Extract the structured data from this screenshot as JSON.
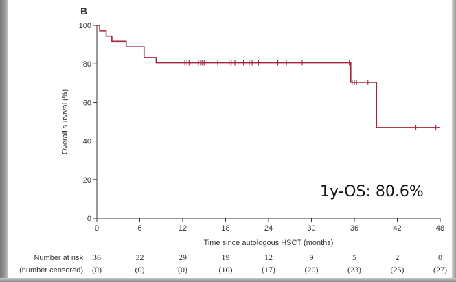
{
  "chart_data": {
    "type": "line",
    "panel_label": "B",
    "xlabel": "Time since autologous HSCT (months)",
    "ylabel": "Overall survival (%)",
    "xlim": [
      0,
      48
    ],
    "ylim": [
      0,
      100
    ],
    "x_ticks": [
      0,
      6,
      12,
      18,
      24,
      30,
      36,
      42,
      48
    ],
    "y_ticks": [
      0,
      20,
      40,
      60,
      80,
      100
    ],
    "grid": false,
    "line_color": "#a3233a",
    "series": [
      {
        "steps": [
          [
            0,
            100
          ],
          [
            0.4,
            97.2
          ],
          [
            1.3,
            94.4
          ],
          [
            2.1,
            91.7
          ],
          [
            4.1,
            88.9
          ],
          [
            6.6,
            83.3
          ],
          [
            8.3,
            80.6
          ],
          [
            35.5,
            70.5
          ],
          [
            39.1,
            47.0
          ],
          [
            48,
            47.0
          ]
        ],
        "censored": [
          [
            12.3,
            80.6
          ],
          [
            12.6,
            80.6
          ],
          [
            12.9,
            80.6
          ],
          [
            13.3,
            80.6
          ],
          [
            14.2,
            80.6
          ],
          [
            14.5,
            80.6
          ],
          [
            14.7,
            80.6
          ],
          [
            15.0,
            80.6
          ],
          [
            15.4,
            80.6
          ],
          [
            16.9,
            80.6
          ],
          [
            18.5,
            80.6
          ],
          [
            18.8,
            80.6
          ],
          [
            19.3,
            80.6
          ],
          [
            20.5,
            80.6
          ],
          [
            21.3,
            80.6
          ],
          [
            21.7,
            80.6
          ],
          [
            22.6,
            80.6
          ],
          [
            25.3,
            80.6
          ],
          [
            26.5,
            80.6
          ],
          [
            28.7,
            80.6
          ],
          [
            35.3,
            80.6
          ],
          [
            35.7,
            70.5
          ],
          [
            36.0,
            70.5
          ],
          [
            36.3,
            70.5
          ],
          [
            37.9,
            70.5
          ],
          [
            44.6,
            47.0
          ],
          [
            47.4,
            47.0
          ]
        ]
      }
    ],
    "risk_table": {
      "label1": "Number at risk",
      "label2": "(number censored)",
      "times": [
        0,
        6,
        12,
        18,
        24,
        30,
        36,
        42,
        48
      ],
      "at_risk": [
        "36",
        "32",
        "29",
        "19",
        "12",
        "9",
        "5",
        "2",
        "0"
      ],
      "censored": [
        "(0)",
        "(0)",
        "(0)",
        "(10)",
        "(17)",
        "(20)",
        "(23)",
        "(25)",
        "(27)"
      ]
    },
    "annotation": "1y-OS: 80.6%"
  }
}
